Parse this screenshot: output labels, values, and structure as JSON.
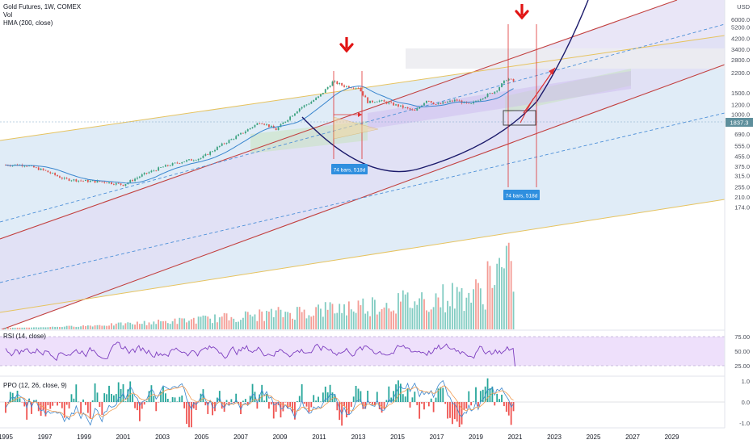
{
  "header": {
    "symbol_line": "Gold Futures, 1W, COMEX",
    "vol_label": "Vol",
    "hma_label": "HMA (200, close)"
  },
  "panes": {
    "rsi_label": "RSI (14, close)",
    "ppo_label": "PPO (12, 26, close, 9)"
  },
  "colors": {
    "channel_red": "#c2403f",
    "channel_gold": "#e6c35f",
    "channel_fill": "#cfe3f4",
    "arc_navy": "#1b1a6b",
    "arrow_red": "#e11414",
    "price_badge": "#5e8f9c",
    "bars_badge": "#2f8fdf",
    "rsi_line": "#7c3cbf",
    "rsi_fill": "#eee0fb",
    "vol_up": "#6cc3b7",
    "vol_down": "#f28b82",
    "hma": "#3a86ce"
  },
  "annotations": [
    {
      "text": "74 bars, 518d"
    },
    {
      "text": "74 bars, 518d"
    }
  ],
  "chart_data": [
    {
      "type": "line",
      "title": "Gold Futures, 1W, COMEX",
      "currency": "USD",
      "scale": "log",
      "ylim": [
        120,
        8000
      ],
      "y_ticks": [
        6000,
        5200,
        4200,
        3400,
        2800,
        2200,
        1500,
        1200,
        1000,
        840,
        690,
        555,
        455,
        375,
        315,
        255,
        210,
        174
      ],
      "y_tick_labels": [
        "6000.0",
        "5200.0",
        "4200.0",
        "3400.0",
        "2800.0",
        "2200.0",
        "1500.0",
        "1200.0",
        "1000.0",
        "840.0",
        "690.0",
        "555.0",
        "455.0",
        "375.0",
        "315.0",
        "255.0",
        "210.0",
        "174.0"
      ],
      "last_price": 1837.3,
      "last_price_label": "1837.3",
      "x_ticks": [
        "1995",
        "1997",
        "1999",
        "2001",
        "2003",
        "2005",
        "2007",
        "2009",
        "2011",
        "2013",
        "2015",
        "2017",
        "2019",
        "2021",
        "2023",
        "2025",
        "2027",
        "2029"
      ],
      "series": [
        {
          "type": "candlestick",
          "x": [
            1995.0,
            1996.0,
            1997.0,
            1998.0,
            1999.0,
            2000.0,
            2001.0,
            2002.0,
            2003.0,
            2004.0,
            2005.0,
            2006.0,
            2007.0,
            2008.0,
            2008.8,
            2009.5,
            2010.0,
            2010.5,
            2011.0,
            2011.7,
            2012.3,
            2013.0,
            2013.5,
            2014.0,
            2015.0,
            2015.9,
            2016.5,
            2017.0,
            2018.0,
            2018.7,
            2019.0,
            2019.5,
            2020.0,
            2020.6,
            2021.0
          ],
          "values": [
            385,
            385,
            345,
            295,
            285,
            280,
            265,
            320,
            370,
            410,
            440,
            560,
            690,
            870,
            750,
            950,
            1120,
            1240,
            1400,
            1850,
            1700,
            1660,
            1250,
            1300,
            1180,
            1060,
            1320,
            1200,
            1310,
            1190,
            1290,
            1420,
            1550,
            1970,
            1837
          ]
        }
      ]
    },
    {
      "type": "bar",
      "title": "Vol",
      "note": "volume histogram, relative heights"
    },
    {
      "type": "line",
      "title": "RSI (14, close)",
      "ylim": [
        20,
        80
      ],
      "y_ticks": [
        75,
        50,
        25
      ],
      "y_tick_labels": [
        "75.00",
        "50.00",
        "25.00"
      ],
      "band": [
        30,
        70
      ]
    },
    {
      "type": "line",
      "title": "PPO (12, 26, close, 9)",
      "ylim": [
        -1.2,
        1.2
      ],
      "y_ticks": [
        1.0,
        0.0,
        -1.0
      ],
      "y_tick_labels": [
        "1.0",
        "0.0",
        "-1.0"
      ]
    }
  ]
}
